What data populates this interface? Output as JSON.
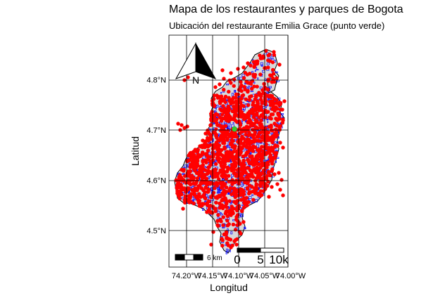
{
  "chart_data": {
    "type": "map",
    "title": "Mapa de los restaurantes y parques de Bogota",
    "subtitle": "Ubicación del restaurante Emilia Grace (punto verde)",
    "xlabel": "Longitud",
    "ylabel": "Latitud",
    "xlim": [
      -74.23,
      -74.0
    ],
    "ylim": [
      4.46,
      4.89
    ],
    "x_ticks": [
      {
        "value": -74.2,
        "label": "74.20°W"
      },
      {
        "value": -74.15,
        "label": "74.15°W"
      },
      {
        "value": -74.1,
        "label": "74.10°W"
      },
      {
        "value": -74.05,
        "label": "74.05°W"
      },
      {
        "value": -74.0,
        "label": "74.00°W"
      }
    ],
    "y_ticks": [
      {
        "value": 4.5,
        "label": "4.5°N"
      },
      {
        "value": 4.6,
        "label": "4.6°N"
      },
      {
        "value": 4.7,
        "label": "4.7°N"
      },
      {
        "value": 4.8,
        "label": "4.8°N"
      }
    ],
    "grid": true,
    "layers": [
      {
        "name": "Bogota boundary",
        "color": "#d9d9d9"
      },
      {
        "name": "parques",
        "color": "#0000ff"
      },
      {
        "name": "restaurantes",
        "color": "#ff0000"
      },
      {
        "name": "Emilia Grace",
        "color": "#33cc33",
        "point": [
          -74.108,
          4.702
        ]
      }
    ],
    "north_arrow": {
      "label": "N",
      "placement": "top-left"
    },
    "scalebar_small": {
      "label": "6 km",
      "placement": "bottom-left"
    },
    "scalebar_large": {
      "labels": [
        "0",
        "5",
        "10k"
      ],
      "placement": "bottom-right"
    }
  }
}
